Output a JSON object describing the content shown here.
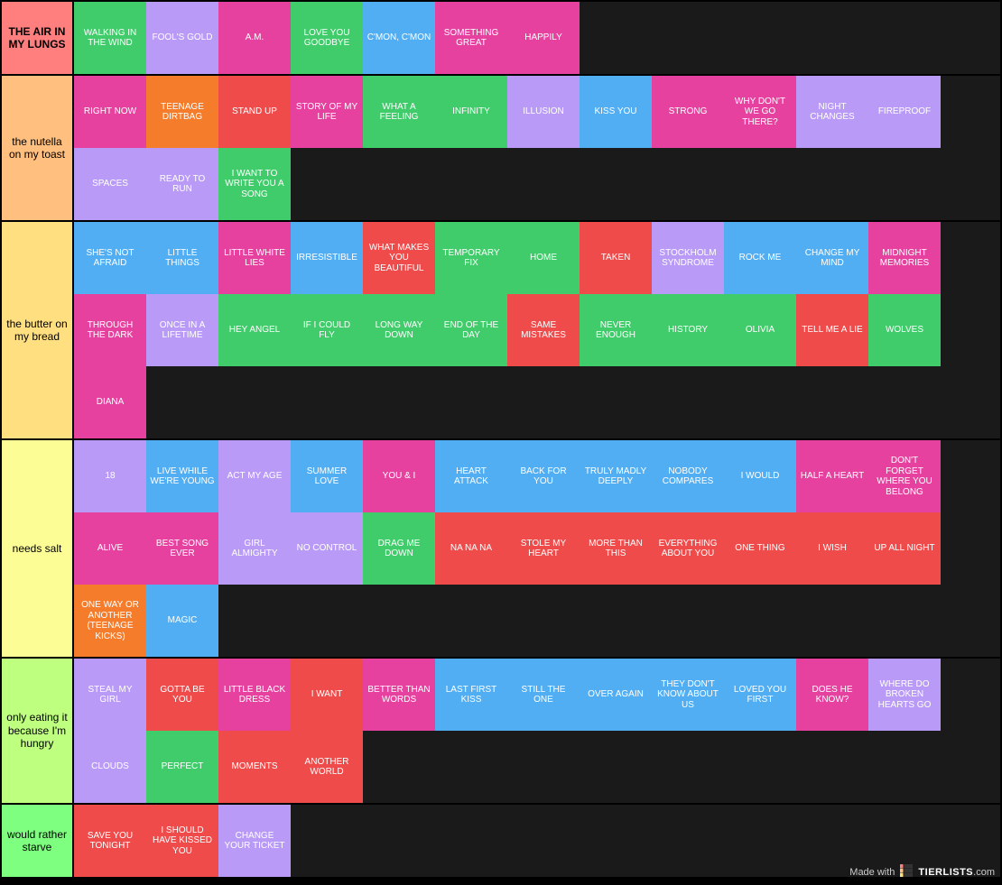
{
  "colors": {
    "blue": "#52aef2",
    "green": "#40cc6a",
    "purple": "#b99bf7",
    "pink": "#e7419f",
    "red": "#ef4b4b",
    "orange": "#f47c2b"
  },
  "tiers": [
    {
      "id": "tier-s",
      "label": "THE AIR IN MY LUNGS",
      "label_color": "#ff7f7f",
      "label_bold": true,
      "items": [
        {
          "text": "WALKING IN THE WIND",
          "color": "#40cc6a"
        },
        {
          "text": "FOOL'S GOLD",
          "color": "#b99bf7"
        },
        {
          "text": "A.M.",
          "color": "#e7419f"
        },
        {
          "text": "LOVE YOU GOODBYE",
          "color": "#40cc6a"
        },
        {
          "text": "C'MON, C'MON",
          "color": "#52aef2"
        },
        {
          "text": "SOMETHING GREAT",
          "color": "#e7419f"
        },
        {
          "text": "HAPPILY",
          "color": "#e7419f"
        }
      ]
    },
    {
      "id": "tier-a",
      "label": "the nutella on my toast",
      "label_color": "#ffbf7f",
      "label_bold": false,
      "items": [
        {
          "text": "RIGHT NOW",
          "color": "#e7419f"
        },
        {
          "text": "TEENAGE DIRTBAG",
          "color": "#f47c2b"
        },
        {
          "text": "STAND UP",
          "color": "#ef4b4b"
        },
        {
          "text": "STORY OF MY LIFE",
          "color": "#e7419f"
        },
        {
          "text": "WHAT A FEELING",
          "color": "#40cc6a"
        },
        {
          "text": "INFINITY",
          "color": "#40cc6a"
        },
        {
          "text": "ILLUSION",
          "color": "#b99bf7"
        },
        {
          "text": "KISS YOU",
          "color": "#52aef2"
        },
        {
          "text": "STRONG",
          "color": "#e7419f"
        },
        {
          "text": "WHY DON'T WE GO THERE?",
          "color": "#e7419f"
        },
        {
          "text": "NIGHT CHANGES",
          "color": "#b99bf7"
        },
        {
          "text": "FIREPROOF",
          "color": "#b99bf7"
        },
        {
          "text": "SPACES",
          "color": "#b99bf7"
        },
        {
          "text": "READY TO RUN",
          "color": "#b99bf7"
        },
        {
          "text": "I WANT TO WRITE YOU A SONG",
          "color": "#40cc6a"
        }
      ]
    },
    {
      "id": "tier-b",
      "label": "the butter on my bread",
      "label_color": "#ffdf7f",
      "label_bold": false,
      "items": [
        {
          "text": "SHE'S NOT AFRAID",
          "color": "#52aef2"
        },
        {
          "text": "LITTLE THINGS",
          "color": "#52aef2"
        },
        {
          "text": "LITTLE WHITE LIES",
          "color": "#e7419f"
        },
        {
          "text": "IRRESISTIBLE",
          "color": "#52aef2"
        },
        {
          "text": "WHAT MAKES YOU BEAUTIFUL",
          "color": "#ef4b4b"
        },
        {
          "text": "TEMPORARY FIX",
          "color": "#40cc6a"
        },
        {
          "text": "HOME",
          "color": "#40cc6a"
        },
        {
          "text": "TAKEN",
          "color": "#ef4b4b"
        },
        {
          "text": "STOCKHOLM SYNDROME",
          "color": "#b99bf7"
        },
        {
          "text": "ROCK ME",
          "color": "#52aef2"
        },
        {
          "text": "CHANGE MY MIND",
          "color": "#52aef2"
        },
        {
          "text": "MIDNIGHT MEMORIES",
          "color": "#e7419f"
        },
        {
          "text": "THROUGH THE DARK",
          "color": "#e7419f"
        },
        {
          "text": "ONCE IN A LIFETIME",
          "color": "#b99bf7"
        },
        {
          "text": "HEY ANGEL",
          "color": "#40cc6a"
        },
        {
          "text": "IF I COULD FLY",
          "color": "#40cc6a"
        },
        {
          "text": "LONG WAY DOWN",
          "color": "#40cc6a"
        },
        {
          "text": "END OF THE DAY",
          "color": "#40cc6a"
        },
        {
          "text": "SAME MISTAKES",
          "color": "#ef4b4b"
        },
        {
          "text": "NEVER ENOUGH",
          "color": "#40cc6a"
        },
        {
          "text": "HISTORY",
          "color": "#40cc6a"
        },
        {
          "text": "OLIVIA",
          "color": "#40cc6a"
        },
        {
          "text": "TELL ME A LIE",
          "color": "#ef4b4b"
        },
        {
          "text": "WOLVES",
          "color": "#40cc6a"
        },
        {
          "text": "DIANA",
          "color": "#e7419f"
        }
      ]
    },
    {
      "id": "tier-c",
      "label": "needs salt",
      "label_color": "#fdfd95",
      "label_bold": false,
      "items": [
        {
          "text": "18",
          "color": "#b99bf7"
        },
        {
          "text": "LIVE WHILE WE'RE YOUNG",
          "color": "#52aef2"
        },
        {
          "text": "ACT MY AGE",
          "color": "#b99bf7"
        },
        {
          "text": "SUMMER LOVE",
          "color": "#52aef2"
        },
        {
          "text": "YOU & I",
          "color": "#e7419f"
        },
        {
          "text": "HEART ATTACK",
          "color": "#52aef2"
        },
        {
          "text": "BACK FOR YOU",
          "color": "#52aef2"
        },
        {
          "text": "TRULY MADLY DEEPLY",
          "color": "#52aef2"
        },
        {
          "text": "NOBODY COMPARES",
          "color": "#52aef2"
        },
        {
          "text": "I WOULD",
          "color": "#52aef2"
        },
        {
          "text": "HALF A HEART",
          "color": "#e7419f"
        },
        {
          "text": "DON'T FORGET WHERE YOU BELONG",
          "color": "#e7419f"
        },
        {
          "text": "ALIVE",
          "color": "#e7419f"
        },
        {
          "text": "BEST SONG EVER",
          "color": "#e7419f"
        },
        {
          "text": "GIRL ALMIGHTY",
          "color": "#b99bf7"
        },
        {
          "text": "NO CONTROL",
          "color": "#b99bf7"
        },
        {
          "text": "DRAG ME DOWN",
          "color": "#40cc6a"
        },
        {
          "text": "NA NA NA",
          "color": "#ef4b4b"
        },
        {
          "text": "STOLE MY HEART",
          "color": "#ef4b4b"
        },
        {
          "text": "MORE THAN THIS",
          "color": "#ef4b4b"
        },
        {
          "text": "EVERYTHING ABOUT YOU",
          "color": "#ef4b4b"
        },
        {
          "text": "ONE THING",
          "color": "#ef4b4b"
        },
        {
          "text": "I WISH",
          "color": "#ef4b4b"
        },
        {
          "text": "UP ALL NIGHT",
          "color": "#ef4b4b"
        },
        {
          "text": "ONE WAY OR ANOTHER (TEENAGE KICKS)",
          "color": "#f47c2b"
        },
        {
          "text": "MAGIC",
          "color": "#52aef2"
        }
      ]
    },
    {
      "id": "tier-d",
      "label": "only eating it because I'm hungry",
      "label_color": "#bfff7f",
      "label_bold": false,
      "items": [
        {
          "text": "STEAL MY GIRL",
          "color": "#b99bf7"
        },
        {
          "text": "GOTTA BE YOU",
          "color": "#ef4b4b"
        },
        {
          "text": "LITTLE BLACK DRESS",
          "color": "#e7419f"
        },
        {
          "text": "I WANT",
          "color": "#ef4b4b"
        },
        {
          "text": "BETTER THAN WORDS",
          "color": "#e7419f"
        },
        {
          "text": "LAST FIRST KISS",
          "color": "#52aef2"
        },
        {
          "text": "STILL THE ONE",
          "color": "#52aef2"
        },
        {
          "text": "OVER AGAIN",
          "color": "#52aef2"
        },
        {
          "text": "THEY DON'T KNOW ABOUT US",
          "color": "#52aef2"
        },
        {
          "text": "LOVED YOU FIRST",
          "color": "#52aef2"
        },
        {
          "text": "DOES HE KNOW?",
          "color": "#e7419f"
        },
        {
          "text": "WHERE DO BROKEN HEARTS GO",
          "color": "#b99bf7"
        },
        {
          "text": "CLOUDS",
          "color": "#b99bf7"
        },
        {
          "text": "PERFECT",
          "color": "#40cc6a"
        },
        {
          "text": "MOMENTS",
          "color": "#ef4b4b"
        },
        {
          "text": "ANOTHER WORLD",
          "color": "#ef4b4b"
        }
      ]
    },
    {
      "id": "tier-f",
      "label": "would rather starve",
      "label_color": "#7fff7f",
      "label_bold": false,
      "items": [
        {
          "text": "SAVE YOU TONIGHT",
          "color": "#ef4b4b"
        },
        {
          "text": "I SHOULD HAVE KISSED YOU",
          "color": "#ef4b4b"
        },
        {
          "text": "CHANGE YOUR TICKET",
          "color": "#b99bf7"
        }
      ]
    }
  ],
  "watermark": {
    "prefix": "Made with",
    "brand": "TIERLISTS",
    "suffix": ".com"
  }
}
